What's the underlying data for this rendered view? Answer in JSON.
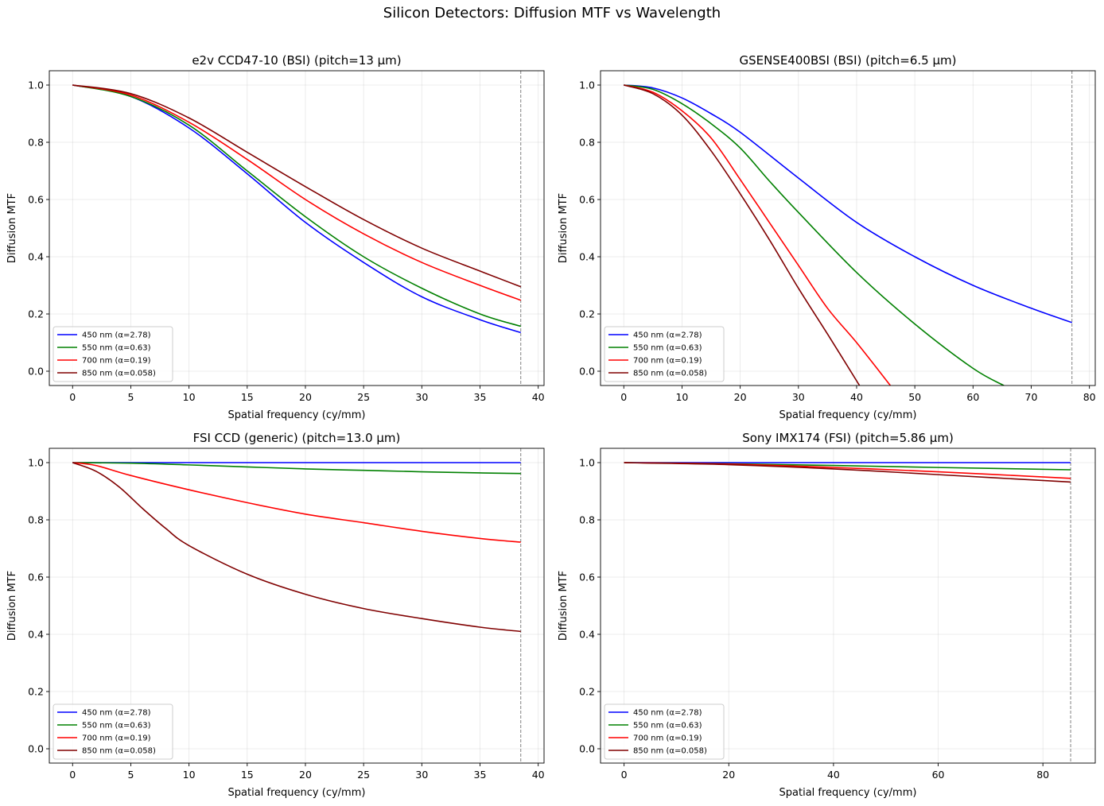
{
  "figure": {
    "suptitle": "Silicon Detectors: Diffusion MTF vs Wavelength"
  },
  "chart_data": [
    {
      "type": "line",
      "title": "e2v CCD47-10 (BSI) (pitch=13 µm)",
      "xlabel": "Spatial frequency (cy/mm)",
      "ylabel": "Diffusion MTF",
      "xlim": [
        -2,
        40.5
      ],
      "ylim": [
        -0.05,
        1.05
      ],
      "xticks": [
        0,
        5,
        10,
        15,
        20,
        25,
        30,
        35,
        40
      ],
      "yticks": [
        0.0,
        0.2,
        0.4,
        0.6,
        0.8,
        1.0
      ],
      "tick_labels_x": [
        "0",
        "5",
        "10",
        "15",
        "20",
        "25",
        "30",
        "35",
        "40"
      ],
      "tick_labels_y": [
        "0.0",
        "0.2",
        "0.4",
        "0.6",
        "0.8",
        "1.0"
      ],
      "grid": true,
      "legend": "lower-left",
      "nyquist": 38.5,
      "series": [
        {
          "name": "450 nm (α=2.78)",
          "color": "#0000ff",
          "x": [
            0,
            5,
            10,
            15,
            20,
            25,
            30,
            35,
            38.5
          ],
          "y": [
            1.0,
            0.96,
            0.85,
            0.69,
            0.52,
            0.38,
            0.26,
            0.18,
            0.135
          ]
        },
        {
          "name": "550 nm (α=0.63)",
          "color": "#008000",
          "x": [
            0,
            5,
            10,
            15,
            20,
            25,
            30,
            35,
            38.5
          ],
          "y": [
            1.0,
            0.96,
            0.86,
            0.7,
            0.54,
            0.4,
            0.29,
            0.2,
            0.157
          ]
        },
        {
          "name": "700 nm (α=0.19)",
          "color": "#ff0000",
          "x": [
            0,
            5,
            10,
            15,
            20,
            25,
            30,
            35,
            38.5
          ],
          "y": [
            1.0,
            0.965,
            0.87,
            0.74,
            0.6,
            0.48,
            0.38,
            0.3,
            0.248
          ]
        },
        {
          "name": "850 nm (α=0.058)",
          "color": "#800000",
          "x": [
            0,
            5,
            10,
            15,
            20,
            25,
            30,
            35,
            38.5
          ],
          "y": [
            1.0,
            0.97,
            0.885,
            0.765,
            0.645,
            0.53,
            0.43,
            0.35,
            0.295
          ]
        }
      ]
    },
    {
      "type": "line",
      "title": "GSENSE400BSI (BSI) (pitch=6.5 µm)",
      "xlabel": "Spatial frequency (cy/mm)",
      "ylabel": "Diffusion MTF",
      "xlim": [
        -4,
        81
      ],
      "ylim": [
        -0.05,
        1.05
      ],
      "xticks": [
        0,
        10,
        20,
        30,
        40,
        50,
        60,
        70,
        80
      ],
      "yticks": [
        0.0,
        0.2,
        0.4,
        0.6,
        0.8,
        1.0
      ],
      "tick_labels_x": [
        "0",
        "10",
        "20",
        "30",
        "40",
        "50",
        "60",
        "70",
        "80"
      ],
      "tick_labels_y": [
        "0.0",
        "0.2",
        "0.4",
        "0.6",
        "0.8",
        "1.0"
      ],
      "grid": true,
      "legend": "lower-left",
      "nyquist": 77,
      "series": [
        {
          "name": "450 nm (α=2.78)",
          "color": "#0000ff",
          "x": [
            0,
            5,
            10,
            15,
            20,
            30,
            40,
            50,
            60,
            70,
            77
          ],
          "y": [
            1.0,
            0.99,
            0.955,
            0.9,
            0.835,
            0.675,
            0.52,
            0.4,
            0.3,
            0.22,
            0.17
          ]
        },
        {
          "name": "550 nm (α=0.63)",
          "color": "#008000",
          "x": [
            0,
            5,
            10,
            15,
            20,
            25,
            30,
            40,
            50,
            60,
            65.3
          ],
          "y": [
            1.0,
            0.985,
            0.935,
            0.865,
            0.78,
            0.665,
            0.555,
            0.345,
            0.165,
            0.01,
            -0.05
          ]
        },
        {
          "name": "700 nm (α=0.19)",
          "color": "#ff0000",
          "x": [
            0,
            5,
            10,
            15,
            20,
            25,
            30,
            35,
            40,
            45.8
          ],
          "y": [
            1.0,
            0.975,
            0.91,
            0.815,
            0.67,
            0.52,
            0.37,
            0.22,
            0.1,
            -0.05
          ]
        },
        {
          "name": "850 nm (α=0.058)",
          "color": "#800000",
          "x": [
            0,
            5,
            10,
            15,
            20,
            25,
            30,
            35,
            40.5
          ],
          "y": [
            1.0,
            0.97,
            0.895,
            0.77,
            0.62,
            0.46,
            0.29,
            0.13,
            -0.05
          ]
        }
      ]
    },
    {
      "type": "line",
      "title": "FSI CCD (generic) (pitch=13.0 µm)",
      "xlabel": "Spatial frequency (cy/mm)",
      "ylabel": "Diffusion MTF",
      "xlim": [
        -2,
        40.5
      ],
      "ylim": [
        -0.05,
        1.05
      ],
      "xticks": [
        0,
        5,
        10,
        15,
        20,
        25,
        30,
        35,
        40
      ],
      "yticks": [
        0.0,
        0.2,
        0.4,
        0.6,
        0.8,
        1.0
      ],
      "tick_labels_x": [
        "0",
        "5",
        "10",
        "15",
        "20",
        "25",
        "30",
        "35",
        "40"
      ],
      "tick_labels_y": [
        "0.0",
        "0.2",
        "0.4",
        "0.6",
        "0.8",
        "1.0"
      ],
      "grid": true,
      "legend": "lower-left",
      "nyquist": 38.5,
      "series": [
        {
          "name": "450 nm (α=2.78)",
          "color": "#0000ff",
          "x": [
            0,
            10,
            20,
            30,
            38.5
          ],
          "y": [
            1.0,
            1.0,
            1.0,
            1.0,
            1.0
          ]
        },
        {
          "name": "550 nm (α=0.63)",
          "color": "#008000",
          "x": [
            0,
            5,
            10,
            15,
            20,
            25,
            30,
            35,
            38.5
          ],
          "y": [
            1.0,
            0.998,
            0.992,
            0.985,
            0.978,
            0.973,
            0.968,
            0.964,
            0.962
          ]
        },
        {
          "name": "700 nm (α=0.19)",
          "color": "#ff0000",
          "x": [
            0,
            2,
            5,
            10,
            15,
            20,
            25,
            30,
            35,
            38.5
          ],
          "y": [
            1.0,
            0.99,
            0.955,
            0.905,
            0.86,
            0.82,
            0.79,
            0.76,
            0.735,
            0.722
          ]
        },
        {
          "name": "850 nm (α=0.058)",
          "color": "#800000",
          "x": [
            0,
            2,
            4,
            6,
            8,
            10,
            15,
            20,
            25,
            30,
            35,
            38.5
          ],
          "y": [
            1.0,
            0.97,
            0.915,
            0.84,
            0.77,
            0.71,
            0.61,
            0.54,
            0.49,
            0.455,
            0.425,
            0.41
          ]
        }
      ]
    },
    {
      "type": "line",
      "title": "Sony IMX174 (FSI) (pitch=5.86 µm)",
      "xlabel": "Spatial frequency (cy/mm)",
      "ylabel": "Diffusion MTF",
      "xlim": [
        -4.5,
        90
      ],
      "ylim": [
        -0.05,
        1.05
      ],
      "xticks": [
        0,
        20,
        40,
        60,
        80
      ],
      "yticks": [
        0.0,
        0.2,
        0.4,
        0.6,
        0.8,
        1.0
      ],
      "tick_labels_x": [
        "0",
        "20",
        "40",
        "60",
        "80"
      ],
      "tick_labels_y": [
        "0.0",
        "0.2",
        "0.4",
        "0.6",
        "0.8",
        "1.0"
      ],
      "grid": true,
      "legend": "lower-left",
      "nyquist": 85.3,
      "series": [
        {
          "name": "450 nm (α=2.78)",
          "color": "#0000ff",
          "x": [
            0,
            40,
            85.3
          ],
          "y": [
            1.0,
            1.0,
            1.0
          ]
        },
        {
          "name": "550 nm (α=0.63)",
          "color": "#008000",
          "x": [
            0,
            20,
            40,
            60,
            85.3
          ],
          "y": [
            1.0,
            0.996,
            0.99,
            0.983,
            0.975
          ]
        },
        {
          "name": "700 nm (α=0.19)",
          "color": "#ff0000",
          "x": [
            0,
            20,
            40,
            60,
            85.3
          ],
          "y": [
            1.0,
            0.995,
            0.983,
            0.968,
            0.945
          ]
        },
        {
          "name": "850 nm (α=0.058)",
          "color": "#800000",
          "x": [
            0,
            20,
            40,
            60,
            85.3
          ],
          "y": [
            1.0,
            0.993,
            0.978,
            0.958,
            0.932
          ]
        }
      ]
    }
  ]
}
